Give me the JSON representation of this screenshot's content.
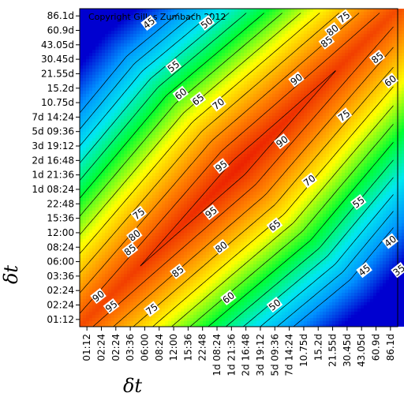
{
  "chart_data": {
    "type": "heatmap",
    "title": "",
    "copyright": "Copyright Gilles Zumbach 2012",
    "xlabel": "δt",
    "ylabel": "δt",
    "ticks": [
      "01:12",
      "02:24",
      "02:24",
      "03:36",
      "06:00",
      "08:24",
      "12:00",
      "15:36",
      "22:48",
      "1d 08:24",
      "1d 21:36",
      "2d 16:48",
      "3d 19:12",
      "5d 09:36",
      "7d 14:24",
      "10.75d",
      "15.2d",
      "21.55d",
      "30.45d",
      "43.05d",
      "60.9d",
      "86.1d"
    ],
    "colorscale": [
      "#0000d0",
      "#0090ff",
      "#00e8f0",
      "#00ff30",
      "#ffff00",
      "#ff8000",
      "#e81000"
    ],
    "zlim": [
      20,
      100
    ],
    "contour_levels": [
      35,
      40,
      45,
      50,
      55,
      60,
      65,
      70,
      75,
      80,
      85,
      90,
      95
    ],
    "grid": false,
    "contour_labels": [
      {
        "text": "45",
        "x": 4.3,
        "y": 20.5
      },
      {
        "text": "50",
        "x": 8.3,
        "y": 20.5
      },
      {
        "text": "75",
        "x": 17.8,
        "y": 20.9
      },
      {
        "text": "80",
        "x": 17.0,
        "y": 20.0
      },
      {
        "text": "85",
        "x": 16.6,
        "y": 19.2
      },
      {
        "text": "85",
        "x": 20.1,
        "y": 18.1
      },
      {
        "text": "55",
        "x": 6.0,
        "y": 17.5
      },
      {
        "text": "90",
        "x": 14.5,
        "y": 16.6
      },
      {
        "text": "60",
        "x": 6.5,
        "y": 15.6
      },
      {
        "text": "65",
        "x": 7.7,
        "y": 15.2
      },
      {
        "text": "70",
        "x": 9.1,
        "y": 14.9
      },
      {
        "text": "60",
        "x": 21.0,
        "y": 16.5
      },
      {
        "text": "75",
        "x": 17.8,
        "y": 14.1
      },
      {
        "text": "90",
        "x": 13.5,
        "y": 12.3
      },
      {
        "text": "95",
        "x": 9.3,
        "y": 10.6
      },
      {
        "text": "70",
        "x": 15.4,
        "y": 9.6
      },
      {
        "text": "95",
        "x": 8.6,
        "y": 7.4
      },
      {
        "text": "75",
        "x": 3.6,
        "y": 7.3
      },
      {
        "text": "65",
        "x": 13.0,
        "y": 6.5
      },
      {
        "text": "55",
        "x": 18.8,
        "y": 8.1
      },
      {
        "text": "80",
        "x": 3.3,
        "y": 5.8
      },
      {
        "text": "80",
        "x": 9.3,
        "y": 5.0
      },
      {
        "text": "85",
        "x": 3.0,
        "y": 4.8
      },
      {
        "text": "40",
        "x": 21.0,
        "y": 5.4
      },
      {
        "text": "85",
        "x": 6.3,
        "y": 3.3
      },
      {
        "text": "45",
        "x": 19.2,
        "y": 3.4
      },
      {
        "text": "35",
        "x": 21.6,
        "y": 3.4
      },
      {
        "text": "90",
        "x": 0.8,
        "y": 1.6
      },
      {
        "text": "95",
        "x": 1.7,
        "y": 0.9
      },
      {
        "text": "60",
        "x": 9.8,
        "y": 1.5
      },
      {
        "text": "75",
        "x": 4.5,
        "y": 0.7
      },
      {
        "text": "50",
        "x": 13.0,
        "y": 1.0
      }
    ]
  }
}
